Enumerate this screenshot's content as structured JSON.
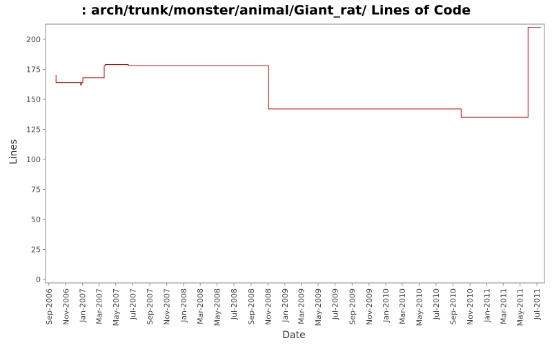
{
  "chart_data": {
    "type": "line",
    "title": ": arch/trunk/monster/animal/Giant_rat/ Lines of Code",
    "xlabel": "Date",
    "ylabel": "Lines",
    "x_ticks": [
      "Sep-2006",
      "Nov-2006",
      "Jan-2007",
      "Mar-2007",
      "May-2007",
      "Jul-2007",
      "Sep-2007",
      "Nov-2007",
      "Jan-2008",
      "Mar-2008",
      "May-2008",
      "Jul-2008",
      "Sep-2008",
      "Nov-2008",
      "Jan-2009",
      "Mar-2009",
      "May-2009",
      "Jul-2009",
      "Sep-2009",
      "Nov-2009",
      "Jan-2010",
      "Mar-2010",
      "May-2010",
      "Jul-2010",
      "Sep-2010",
      "Nov-2010",
      "Jan-2011",
      "Mar-2011",
      "May-2011",
      "Jul-2011"
    ],
    "y_ticks": [
      "0",
      "25",
      "50",
      "75",
      "100",
      "125",
      "150",
      "175",
      "200"
    ],
    "ylim": [
      0,
      215
    ],
    "xlim": [
      "2006-08-20",
      "2011-07-28"
    ],
    "grid": false,
    "legend": "none",
    "line_color": "#cc0000",
    "series": [
      {
        "values": [
          {
            "x": "2006-09-26",
            "y": 170
          },
          {
            "x": "2006-09-27",
            "y": 164
          },
          {
            "x": "2006-12-25",
            "y": 162
          },
          {
            "x": "2006-12-28",
            "y": 164
          },
          {
            "x": "2007-01-02",
            "y": 168
          },
          {
            "x": "2007-03-20",
            "y": 178
          },
          {
            "x": "2007-03-24",
            "y": 179
          },
          {
            "x": "2007-06-15",
            "y": 178
          },
          {
            "x": "2008-11-03",
            "y": 142
          },
          {
            "x": "2010-09-30",
            "y": 135
          },
          {
            "x": "2011-05-30",
            "y": 210
          },
          {
            "x": "2011-07-15",
            "y": 210
          }
        ]
      }
    ]
  }
}
